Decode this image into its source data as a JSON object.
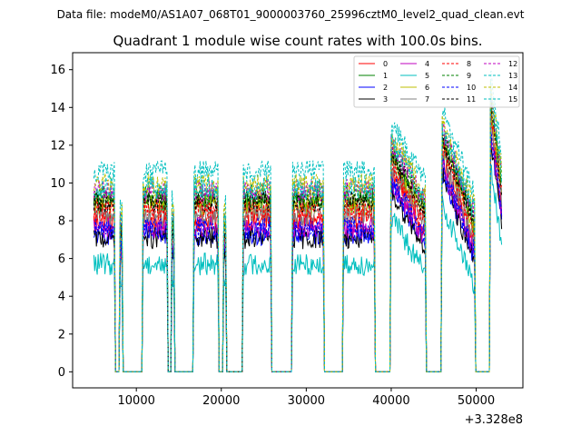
{
  "chart_data": {
    "type": "line",
    "suptitle": "Data file: modeM0/AS1A07_068T01_9000003760_25996cztM0_level2_quad_clean.evt",
    "title": "Quadrant 1 module wise count rates with 100.0s bins.",
    "xlabel": "",
    "ylabel": "",
    "x_offset_label": "+3.328e8",
    "xlim": [
      2500,
      55500
    ],
    "ylim": [
      -0.85,
      16.9
    ],
    "xticks": [
      10000,
      20000,
      30000,
      40000,
      50000
    ],
    "xtick_labels": [
      "10000",
      "20000",
      "30000",
      "40000",
      "50000"
    ],
    "yticks": [
      0,
      2,
      4,
      6,
      8,
      10,
      12,
      14,
      16
    ],
    "ytick_labels": [
      "0",
      "2",
      "4",
      "6",
      "8",
      "10",
      "12",
      "14",
      "16"
    ],
    "grid": false,
    "legend_position": "top-right",
    "on_segments": [
      [
        5000,
        7400
      ],
      [
        8100,
        8300
      ],
      [
        10800,
        13600
      ],
      [
        14200,
        14400
      ],
      [
        16800,
        19600
      ],
      [
        20300,
        20500
      ],
      [
        22600,
        25800
      ],
      [
        28400,
        32000
      ],
      [
        34400,
        38000
      ],
      [
        40000,
        44000
      ],
      [
        46000,
        49800
      ],
      [
        51700,
        53000
      ]
    ],
    "series": [
      {
        "name": "0",
        "color": "#ff0000",
        "style": "solid",
        "mean": 8.0,
        "early_level": 8.0
      },
      {
        "name": "1",
        "color": "#008000",
        "style": "solid",
        "mean": 9.0,
        "early_level": 9.0
      },
      {
        "name": "2",
        "color": "#0000ff",
        "style": "solid",
        "mean": 7.3,
        "early_level": 7.3
      },
      {
        "name": "3",
        "color": "#000000",
        "style": "solid",
        "mean": 7.1,
        "early_level": 7.1
      },
      {
        "name": "4",
        "color": "#bf00bf",
        "style": "solid",
        "mean": 7.6,
        "early_level": 7.6
      },
      {
        "name": "5",
        "color": "#00bfbf",
        "style": "solid",
        "mean": 5.7,
        "early_level": 5.7
      },
      {
        "name": "6",
        "color": "#bfbf00",
        "style": "solid",
        "mean": 8.8,
        "early_level": 8.8
      },
      {
        "name": "7",
        "color": "#808080",
        "style": "solid",
        "mean": 8.3,
        "early_level": 8.3
      },
      {
        "name": "8",
        "color": "#ff0000",
        "style": "dashed",
        "mean": 8.6,
        "early_level": 8.6
      },
      {
        "name": "9",
        "color": "#008000",
        "style": "dashed",
        "mean": 9.4,
        "early_level": 9.4
      },
      {
        "name": "10",
        "color": "#0000ff",
        "style": "dashed",
        "mean": 7.6,
        "early_level": 7.6
      },
      {
        "name": "11",
        "color": "#000000",
        "style": "dashed",
        "mean": 9.0,
        "early_level": 9.0
      },
      {
        "name": "12",
        "color": "#bf00bf",
        "style": "dashed",
        "mean": 9.6,
        "early_level": 9.6
      },
      {
        "name": "13",
        "color": "#00bfbf",
        "style": "dashed",
        "mean": 10.6,
        "early_level": 10.6
      },
      {
        "name": "14",
        "color": "#bfbf00",
        "style": "dashed",
        "mean": 9.9,
        "early_level": 9.9
      },
      {
        "name": "15",
        "color": "#00bfbf",
        "style": "dashed",
        "mean": 9.7,
        "early_level": 9.7
      }
    ]
  }
}
